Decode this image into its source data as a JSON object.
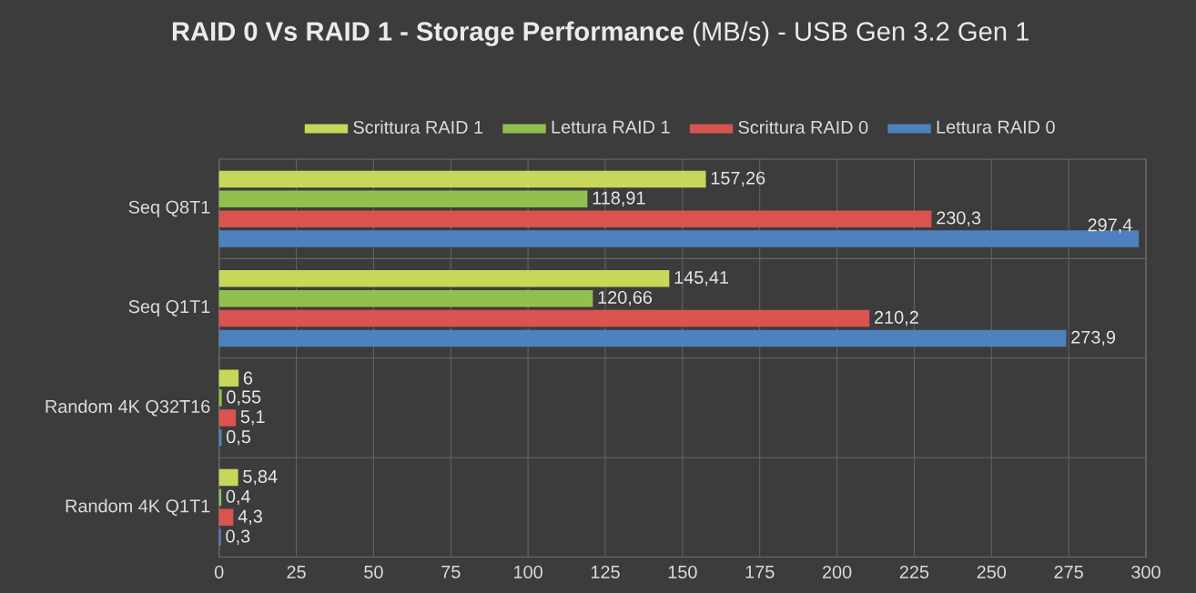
{
  "chart_data": {
    "type": "bar",
    "orientation": "horizontal",
    "title": "**RAID 0 Vs RAID 1 - Storage Performance** (MB/s) - USB Gen 3.2 Gen 1",
    "categories": [
      "Seq Q8T1",
      "Seq Q1T1",
      "Random 4K Q32T16",
      "Random 4K Q1T1"
    ],
    "series": [
      {
        "name": "Scrittura RAID 1",
        "color": "#c8d65a",
        "values": [
          157.26,
          145.41,
          6,
          5.84
        ],
        "value_labels": [
          "157,26",
          "145,41",
          "6",
          "5,84"
        ]
      },
      {
        "name": "Lettura RAID 1",
        "color": "#92c050",
        "values": [
          118.91,
          120.66,
          0.55,
          0.4
        ],
        "value_labels": [
          "118,91",
          "120,66",
          "0,55",
          "0,4"
        ]
      },
      {
        "name": "Scrittura RAID 0",
        "color": "#d9534f",
        "values": [
          230.3,
          210.2,
          5.1,
          4.3
        ],
        "value_labels": [
          "230,3",
          "210,2",
          "5,1",
          "4,3"
        ]
      },
      {
        "name": "Lettura RAID 0",
        "color": "#4f81bd",
        "values": [
          297.4,
          273.9,
          0.5,
          0.3
        ],
        "value_labels": [
          "297,4",
          "273,9",
          "0,5",
          "0,3"
        ]
      }
    ],
    "xlim": [
      0,
      300
    ],
    "xticks": [
      0,
      25,
      50,
      75,
      100,
      125,
      150,
      175,
      200,
      225,
      250,
      275,
      300
    ],
    "grid": true,
    "legend": "top"
  }
}
